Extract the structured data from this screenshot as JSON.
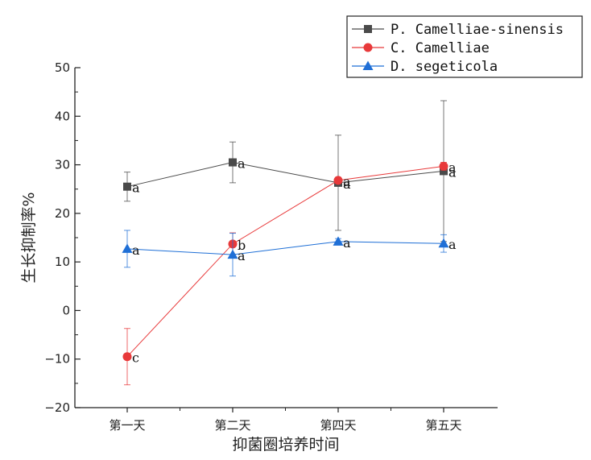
{
  "chart_data": {
    "type": "line",
    "title": "",
    "xlabel": "抑菌圈培养时间",
    "ylabel": "生长抑制率%",
    "categories": [
      "第一天",
      "第二天",
      "第四天",
      "第五天"
    ],
    "ylim": [
      -20,
      50
    ],
    "yticks": [
      -20,
      -10,
      0,
      10,
      20,
      30,
      40,
      50
    ],
    "grid": false,
    "legend_position": "top-right",
    "series": [
      {
        "name": "P. Camelliae-sinensis",
        "color": "#4a4a4a",
        "marker": "square",
        "values": [
          25.5,
          30.5,
          26.3,
          28.7
        ],
        "errors": [
          3.0,
          4.2,
          9.8,
          14.5
        ],
        "labels": [
          "a",
          "a",
          "a",
          "a"
        ]
      },
      {
        "name": "C. Camelliae",
        "color": "#e8393a",
        "marker": "circle",
        "values": [
          -9.5,
          13.7,
          26.8,
          29.7
        ],
        "errors": [
          5.8,
          2.3,
          0.6,
          0.8
        ],
        "labels": [
          "c",
          "b",
          "a",
          "a"
        ]
      },
      {
        "name": "D. segeticola",
        "color": "#1f6fd6",
        "marker": "triangle",
        "values": [
          12.7,
          11.5,
          14.2,
          13.8
        ],
        "errors": [
          3.8,
          4.4,
          0.6,
          1.8
        ],
        "labels": [
          "a",
          "a",
          "a",
          "a"
        ]
      }
    ]
  }
}
